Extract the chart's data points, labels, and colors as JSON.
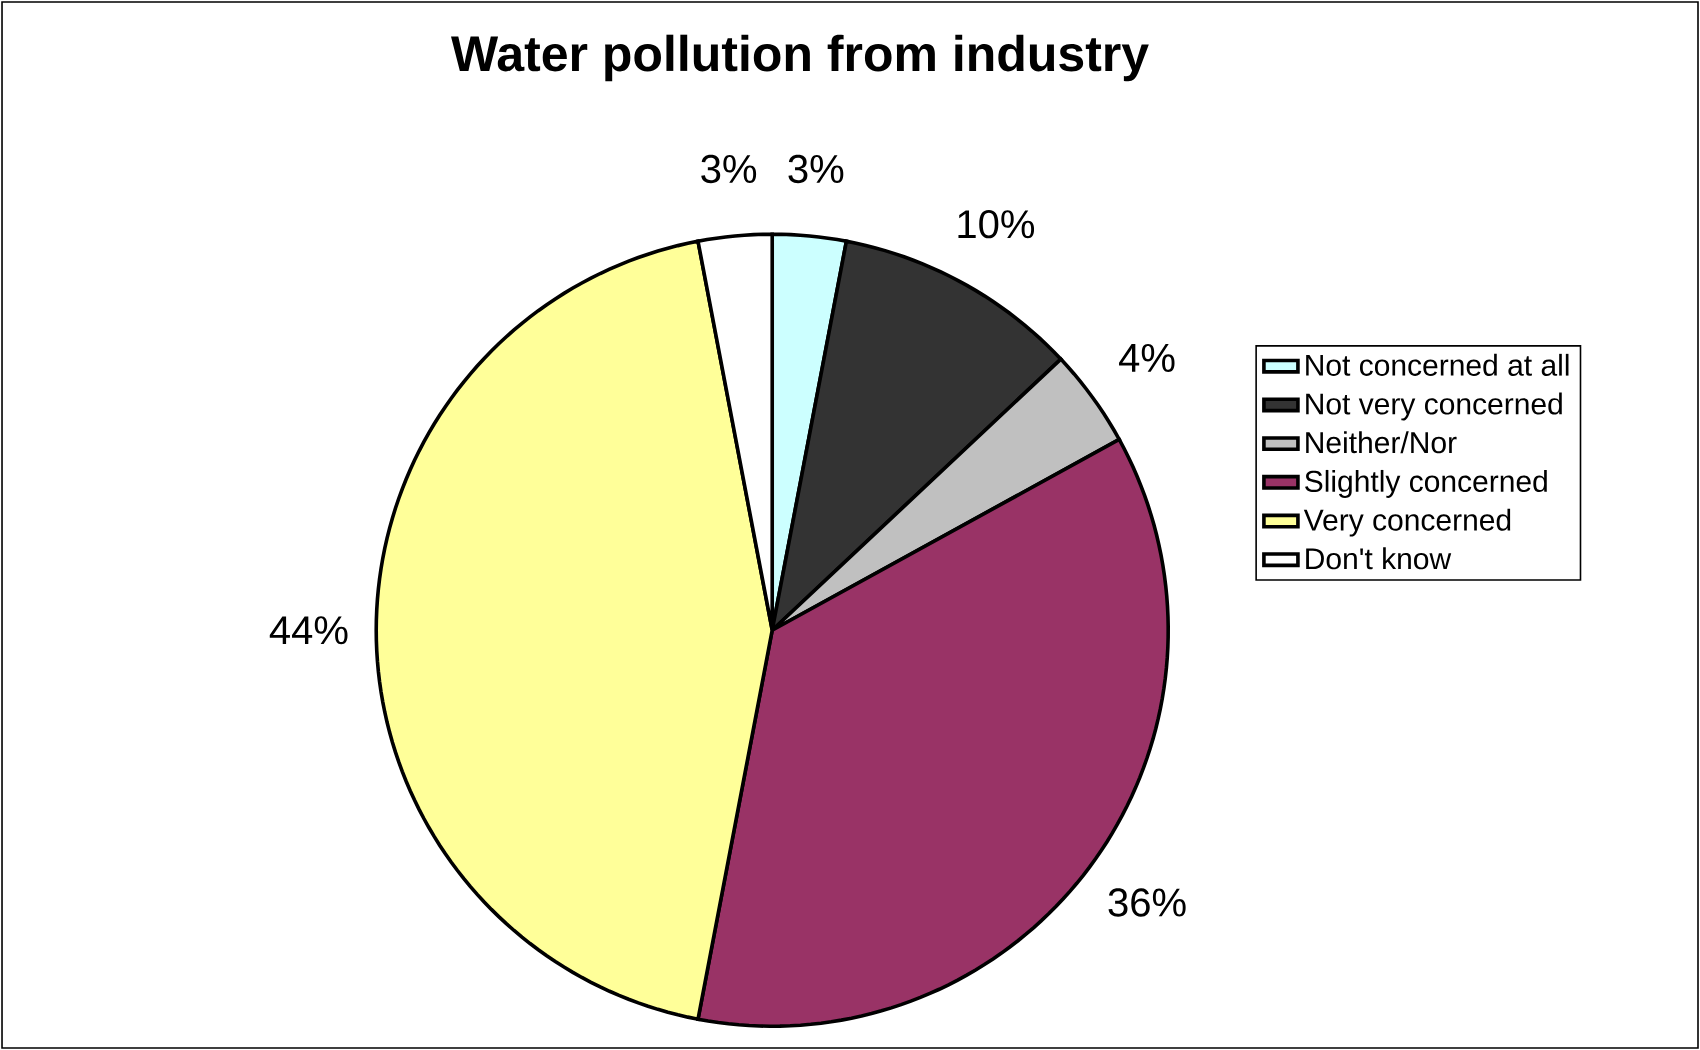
{
  "chart_data": {
    "type": "pie",
    "title": "Water pollution from industry",
    "categories": [
      "Not concerned at all",
      "Not very concerned",
      "Neither/Nor",
      "Slightly concerned",
      "Very concerned",
      "Don't know"
    ],
    "values": [
      3,
      10,
      4,
      36,
      44,
      3
    ],
    "value_labels": [
      "3%",
      "10%",
      "4%",
      "36%",
      "44%",
      "3%"
    ],
    "colors": [
      "#ccffff",
      "#333333",
      "#c0c0c0",
      "#993366",
      "#ffff99",
      "#ffffff"
    ],
    "legend": "right"
  }
}
